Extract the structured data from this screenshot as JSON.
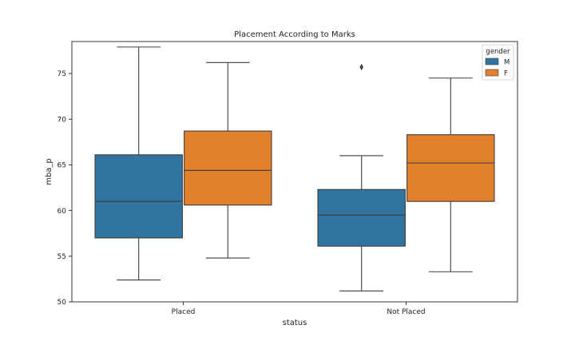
{
  "chart_data": {
    "type": "box",
    "title": "Placement According to Marks",
    "xlabel": "status",
    "ylabel": "mba_p",
    "ylim": [
      50,
      78.5
    ],
    "yticks": [
      50,
      55,
      60,
      65,
      70,
      75
    ],
    "categories": [
      "Placed",
      "Not Placed"
    ],
    "legend": {
      "title": "gender",
      "position": "top-right"
    },
    "series": [
      {
        "name": "M",
        "color": "#3274a1",
        "boxes": [
          {
            "category": "Placed",
            "whisker_low": 52.4,
            "q1": 57.0,
            "median": 61.0,
            "q3": 66.1,
            "whisker_high": 77.9,
            "outliers": []
          },
          {
            "category": "Not Placed",
            "whisker_low": 51.2,
            "q1": 56.1,
            "median": 59.5,
            "q3": 62.3,
            "whisker_high": 66.0,
            "outliers": [
              75.7
            ]
          }
        ]
      },
      {
        "name": "F",
        "color": "#e1812c",
        "boxes": [
          {
            "category": "Placed",
            "whisker_low": 54.8,
            "q1": 60.6,
            "median": 64.4,
            "q3": 68.7,
            "whisker_high": 76.2,
            "outliers": []
          },
          {
            "category": "Not Placed",
            "whisker_low": 53.3,
            "q1": 61.0,
            "median": 65.2,
            "q3": 68.3,
            "whisker_high": 74.5,
            "outliers": []
          }
        ]
      }
    ]
  }
}
